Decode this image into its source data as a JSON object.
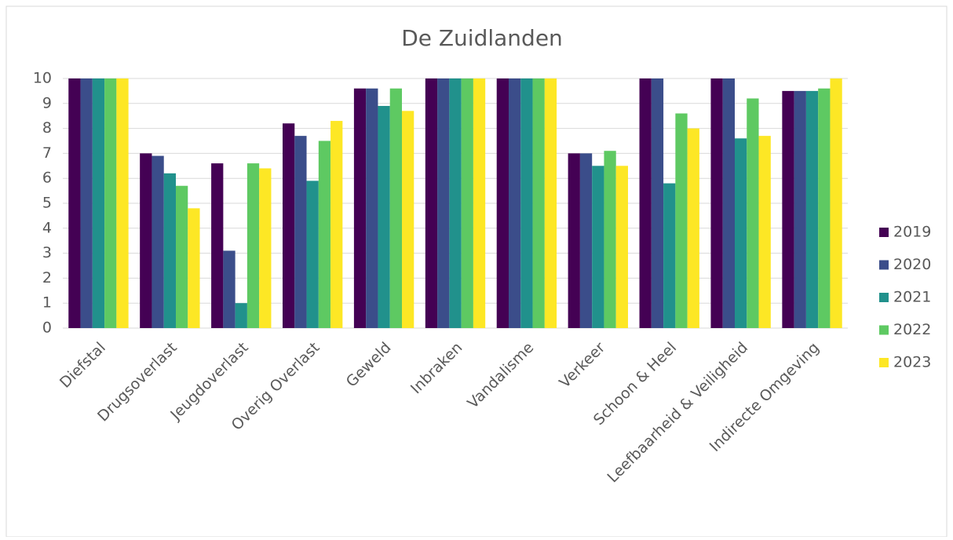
{
  "chart_data": {
    "type": "bar",
    "title": "De Zuidlanden",
    "categories": [
      "Diefstal",
      "Drugsoverlast",
      "Jeugdoverlast",
      "Overig Overlast",
      "Geweld",
      "Inbraken",
      "Vandalisme",
      "Verkeer",
      "Schoon & Heel",
      "Leefbaarheid & Veiligheid",
      "Indirecte Omgeving"
    ],
    "series": [
      {
        "name": "2019",
        "color": "#440154",
        "values": [
          10,
          7.0,
          6.6,
          8.2,
          9.6,
          10,
          10,
          7.0,
          10,
          10,
          9.5
        ]
      },
      {
        "name": "2020",
        "color": "#3b4d8a",
        "values": [
          10,
          6.9,
          3.1,
          7.7,
          9.6,
          10,
          10,
          7.0,
          10,
          10,
          9.5
        ]
      },
      {
        "name": "2021",
        "color": "#21918c",
        "values": [
          10,
          6.2,
          1.0,
          5.9,
          8.9,
          10,
          10,
          6.5,
          5.8,
          7.6,
          9.5
        ]
      },
      {
        "name": "2022",
        "color": "#5ec962",
        "values": [
          10,
          5.7,
          6.6,
          7.5,
          9.6,
          10,
          10,
          7.1,
          8.6,
          9.2,
          9.6
        ]
      },
      {
        "name": "2023",
        "color": "#fde725",
        "values": [
          10,
          4.8,
          6.4,
          8.3,
          8.7,
          10,
          10,
          6.5,
          8.0,
          7.7,
          10
        ]
      }
    ],
    "ylim": [
      0,
      10
    ],
    "yticks": [
      0,
      1,
      2,
      3,
      4,
      5,
      6,
      7,
      8,
      9,
      10
    ],
    "grid": true,
    "legend": "right"
  }
}
